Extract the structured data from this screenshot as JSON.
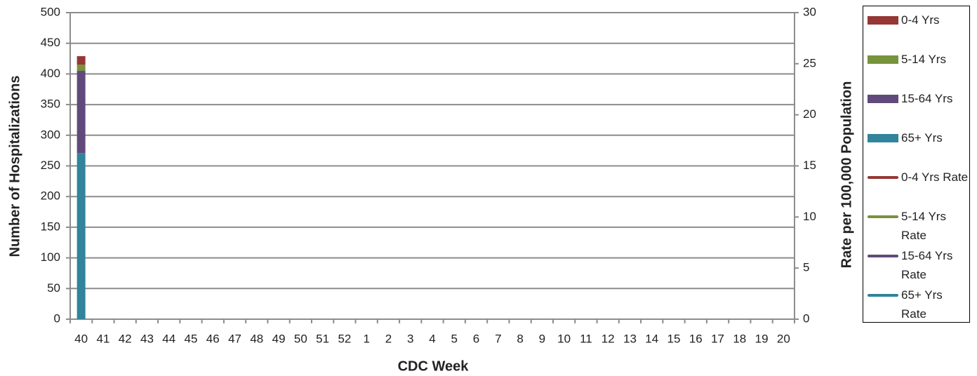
{
  "chart_data": {
    "type": "bar",
    "stacked": true,
    "x_label": "CDC Week",
    "y_label": "Number of Hospitalizations",
    "y2_label": "Rate per 100,000 Population",
    "categories": [
      "40",
      "41",
      "42",
      "43",
      "44",
      "45",
      "46",
      "47",
      "48",
      "49",
      "50",
      "51",
      "52",
      "1",
      "2",
      "3",
      "4",
      "5",
      "6",
      "7",
      "8",
      "9",
      "10",
      "11",
      "12",
      "13",
      "14",
      "15",
      "16",
      "17",
      "18",
      "19",
      "20"
    ],
    "series": [
      {
        "name": "0-4 Yrs",
        "color": "#953735",
        "values": [
          14,
          null,
          null,
          null,
          null,
          null,
          null,
          null,
          null,
          null,
          null,
          null,
          null,
          null,
          null,
          null,
          null,
          null,
          null,
          null,
          null,
          null,
          null,
          null,
          null,
          null,
          null,
          null,
          null,
          null,
          null,
          null,
          null
        ]
      },
      {
        "name": "5-14 Yrs",
        "color": "#77933c",
        "values": [
          10,
          null,
          null,
          null,
          null,
          null,
          null,
          null,
          null,
          null,
          null,
          null,
          null,
          null,
          null,
          null,
          null,
          null,
          null,
          null,
          null,
          null,
          null,
          null,
          null,
          null,
          null,
          null,
          null,
          null,
          null,
          null,
          null
        ]
      },
      {
        "name": "15-64 Yrs",
        "color": "#604a7b",
        "values": [
          134,
          null,
          null,
          null,
          null,
          null,
          null,
          null,
          null,
          null,
          null,
          null,
          null,
          null,
          null,
          null,
          null,
          null,
          null,
          null,
          null,
          null,
          null,
          null,
          null,
          null,
          null,
          null,
          null,
          null,
          null,
          null,
          null
        ]
      },
      {
        "name": "65+ Yrs",
        "color": "#31849b",
        "values": [
          271,
          null,
          null,
          null,
          null,
          null,
          null,
          null,
          null,
          null,
          null,
          null,
          null,
          null,
          null,
          null,
          null,
          null,
          null,
          null,
          null,
          null,
          null,
          null,
          null,
          null,
          null,
          null,
          null,
          null,
          null,
          null,
          null
        ]
      },
      {
        "name": "0-4 Yrs Rate",
        "color": "#953735",
        "axis": "y2",
        "values": [
          null,
          null,
          null,
          null,
          null,
          null,
          null,
          null,
          null,
          null,
          null,
          null,
          null,
          null,
          null,
          null,
          null,
          null,
          null,
          null,
          null,
          null,
          null,
          null,
          null,
          null,
          null,
          null,
          null,
          null,
          null,
          null,
          null
        ]
      },
      {
        "name": "5-14 Yrs Rate",
        "color": "#77933c",
        "axis": "y2",
        "values": [
          null,
          null,
          null,
          null,
          null,
          null,
          null,
          null,
          null,
          null,
          null,
          null,
          null,
          null,
          null,
          null,
          null,
          null,
          null,
          null,
          null,
          null,
          null,
          null,
          null,
          null,
          null,
          null,
          null,
          null,
          null,
          null,
          null
        ]
      },
      {
        "name": "15-64 Yrs Rate",
        "color": "#604a7b",
        "axis": "y2",
        "values": [
          null,
          null,
          null,
          null,
          null,
          null,
          null,
          null,
          null,
          null,
          null,
          null,
          null,
          null,
          null,
          null,
          null,
          null,
          null,
          null,
          null,
          null,
          null,
          null,
          null,
          null,
          null,
          null,
          null,
          null,
          null,
          null,
          null
        ]
      },
      {
        "name": "65+ Yrs Rate",
        "color": "#31849b",
        "axis": "y2",
        "values": [
          null,
          null,
          null,
          null,
          null,
          null,
          null,
          null,
          null,
          null,
          null,
          null,
          null,
          null,
          null,
          null,
          null,
          null,
          null,
          null,
          null,
          null,
          null,
          null,
          null,
          null,
          null,
          null,
          null,
          null,
          null,
          null,
          null
        ]
      }
    ],
    "ylim": [
      0,
      500
    ],
    "yticks": [
      0,
      50,
      100,
      150,
      200,
      250,
      300,
      350,
      400,
      450,
      500
    ],
    "y2lim": [
      0,
      30
    ],
    "y2ticks": [
      0,
      5,
      10,
      15,
      20,
      25,
      30
    ],
    "grid": true,
    "legend": "right"
  }
}
